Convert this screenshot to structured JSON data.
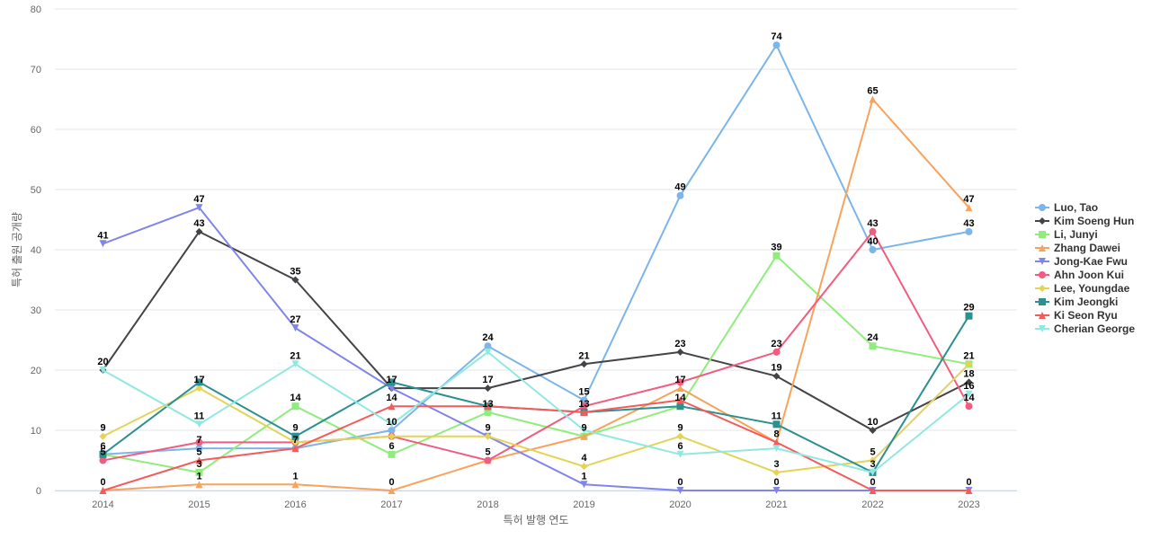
{
  "chart_data": {
    "type": "line",
    "title": "",
    "xlabel": "특허 발행 연도",
    "ylabel": "특허 출원 공개량",
    "ylim": [
      0,
      80
    ],
    "yticks": [
      0,
      10,
      20,
      30,
      40,
      50,
      60,
      70,
      80
    ],
    "grid": true,
    "legend_position": "right",
    "x": [
      2014,
      2015,
      2016,
      2017,
      2018,
      2019,
      2020,
      2021,
      2022,
      2023
    ],
    "series": [
      {
        "name": "Luo, Tao",
        "color": "#7cb5e8",
        "marker": "circle",
        "values": [
          6,
          7,
          7,
          10,
          24,
          15,
          49,
          74,
          40,
          43
        ]
      },
      {
        "name": "Kim Soeng Hun",
        "color": "#434348",
        "marker": "diamond",
        "values": [
          20,
          43,
          35,
          17,
          17,
          21,
          23,
          19,
          10,
          18
        ]
      },
      {
        "name": "Li, Junyi",
        "color": "#90ed7d",
        "marker": "square",
        "values": [
          6,
          3,
          14,
          6,
          13,
          9,
          14,
          39,
          24,
          21
        ]
      },
      {
        "name": "Zhang Dawei",
        "color": "#f7a35c",
        "marker": "triangle",
        "values": [
          0,
          1,
          1,
          0,
          5,
          9,
          17,
          8,
          65,
          47
        ]
      },
      {
        "name": "Jong-Kae Fwu",
        "color": "#8085e9",
        "marker": "triangle-down",
        "values": [
          41,
          47,
          27,
          17,
          9,
          1,
          0,
          0,
          0,
          0
        ]
      },
      {
        "name": "Ahn Joon Kui",
        "color": "#f15c80",
        "marker": "circle",
        "values": [
          5,
          8,
          8,
          9,
          5,
          14,
          18,
          23,
          43,
          14
        ]
      },
      {
        "name": "Lee, Youngdae",
        "color": "#e4d354",
        "marker": "diamond",
        "values": [
          9,
          17,
          8,
          9,
          9,
          4,
          9,
          3,
          5,
          21
        ]
      },
      {
        "name": "Kim Jeongki",
        "color": "#2b908f",
        "marker": "square",
        "values": [
          6,
          18,
          9,
          18,
          14,
          13,
          14,
          11,
          3,
          29
        ]
      },
      {
        "name": "Ki Seon Ryu",
        "color": "#f45b5b",
        "marker": "triangle",
        "values": [
          0,
          5,
          7,
          14,
          14,
          13,
          15,
          8,
          0,
          0
        ]
      },
      {
        "name": "Cherian George",
        "color": "#91e8e1",
        "marker": "triangle-down",
        "values": [
          20,
          11,
          21,
          11,
          23,
          10,
          6,
          7,
          3,
          16
        ]
      }
    ],
    "data_labels": [
      {
        "x": 2014,
        "labels": [
          "41",
          "20",
          "9",
          "6",
          "5",
          "0"
        ]
      },
      {
        "x": 2015,
        "labels": [
          "47",
          "43",
          "17",
          "11",
          "7",
          "5",
          "3",
          "1"
        ]
      },
      {
        "x": 2016,
        "labels": [
          "35",
          "27",
          "21",
          "14",
          "9",
          "7",
          "1"
        ]
      },
      {
        "x": 2017,
        "labels": [
          "17",
          "14",
          "10",
          "6",
          "0"
        ]
      },
      {
        "x": 2018,
        "labels": [
          "24",
          "17",
          "13",
          "9",
          "5"
        ]
      },
      {
        "x": 2019,
        "labels": [
          "21",
          "15",
          "13",
          "9",
          "4",
          "1"
        ]
      },
      {
        "x": 2020,
        "labels": [
          "49",
          "23",
          "17",
          "14",
          "9",
          "6",
          "0"
        ]
      },
      {
        "x": 2021,
        "labels": [
          "74",
          "39",
          "23",
          "19",
          "11",
          "8",
          "3",
          "0"
        ]
      },
      {
        "x": 2022,
        "labels": [
          "65",
          "43",
          "40",
          "24",
          "10",
          "5",
          "3",
          "0"
        ]
      },
      {
        "x": 2023,
        "labels": [
          "47",
          "43",
          "29",
          "21",
          "18",
          "16",
          "14",
          "0"
        ]
      }
    ]
  }
}
